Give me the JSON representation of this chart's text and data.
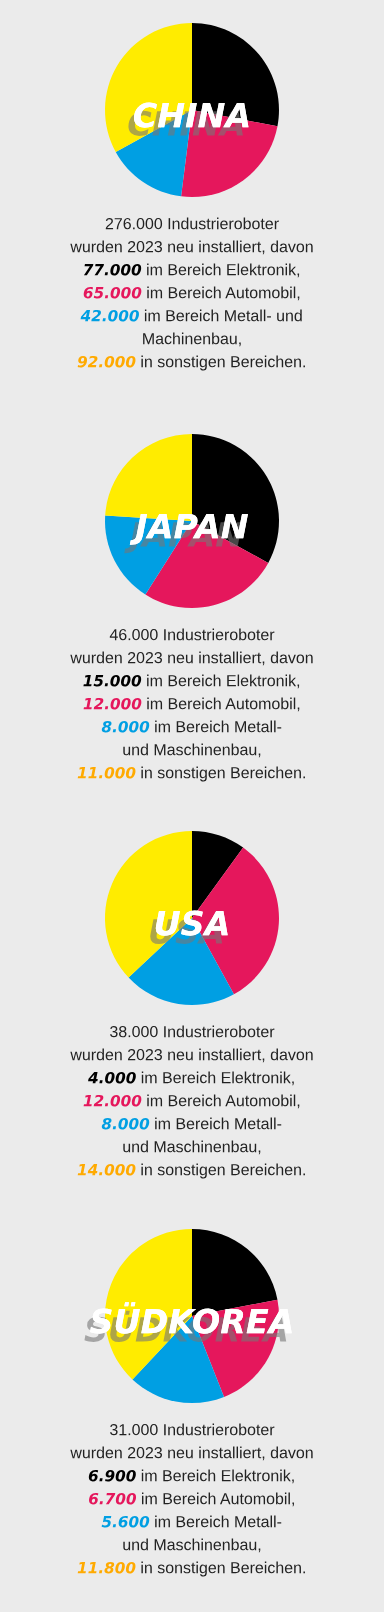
{
  "chart_data": [
    {
      "type": "pie",
      "title": "CHINA",
      "categories": [
        null,
        null,
        null,
        null
      ],
      "values": [
        28,
        24,
        15,
        33
      ],
      "colors": [
        "#000000",
        "#e5175c",
        "#009fe3",
        "#ffec00"
      ],
      "annotations": [
        "276.000 Industrieroboter\nwurden 2023 neu installiert, davon",
        "77.000 im Bereich Elektronik,",
        "65.000 im Bereich Automobil,",
        "42.000 im Bereich Metall- und\nMachinenbau,",
        "92.000 in sonstigen Bereichen."
      ]
    },
    {
      "type": "pie",
      "title": "JAPAN",
      "categories": [
        null,
        null,
        null,
        null
      ],
      "values": [
        33,
        26,
        17,
        24
      ],
      "colors": [
        "#000000",
        "#e5175c",
        "#009fe3",
        "#ffec00"
      ],
      "annotations": [
        "46.000 Industrieroboter\nwurden 2023 neu installiert, davon",
        "15.000 im Bereich Elektronik,",
        "12.000 im Bereich Automobil,",
        "8.000 im Bereich Metall-\nund Maschinenbau,",
        "11.000 in sonstigen Bereichen."
      ]
    },
    {
      "type": "pie",
      "title": "USA",
      "categories": [
        null,
        null,
        null,
        null
      ],
      "values": [
        10,
        32,
        21,
        37
      ],
      "colors": [
        "#000000",
        "#e5175c",
        "#009fe3",
        "#ffec00"
      ],
      "annotations": [
        "38.000 Industrieroboter\nwurden 2023 neu installiert, davon",
        "4.000 im Bereich Elektronik,",
        "12.000 im Bereich Automobil,",
        "8.000 im Bereich Metall-\nund Maschinenbau,",
        "14.000 in sonstigen Bereichen."
      ]
    },
    {
      "type": "pie",
      "title": "SÜDKOREA",
      "categories": [
        null,
        null,
        null,
        null
      ],
      "values": [
        22,
        22,
        18,
        38
      ],
      "colors": [
        "#000000",
        "#e5175c",
        "#009fe3",
        "#ffec00"
      ],
      "annotations": [
        "31.000 Industrieroboter\nwurden 2023 neu installiert, davon",
        "6.900 im Bereich Elektronik,",
        "6.700 im Bereich Automobil,",
        "5.600 im Bereich Metall-\nund Maschinenbau,",
        "11.800 in sonstigen Bereichen."
      ]
    }
  ]
}
